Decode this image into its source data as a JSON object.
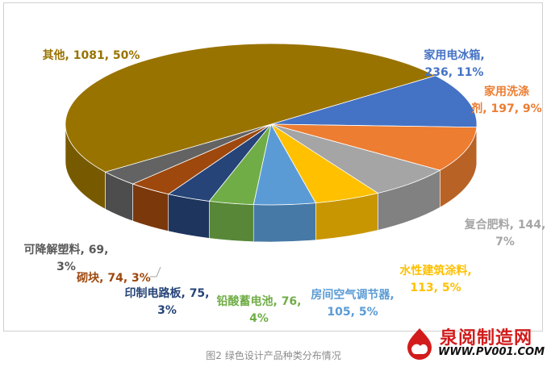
{
  "chart_data": {
    "type": "pie",
    "variant": "3d",
    "title": "",
    "legend": "none",
    "slices": [
      {
        "name": "家用电冰箱",
        "value": 236,
        "percent": "11%",
        "color": "#4472c4",
        "label_color": "#4472c4",
        "label_lines": [
          "家用电冰箱,",
          "236, 11%"
        ]
      },
      {
        "name": "家用洗涤剂",
        "value": 197,
        "percent": "9%",
        "color": "#ed7d31",
        "label_color": "#ed7d31",
        "label_lines": [
          "家用洗涤",
          "剂, 197, 9%"
        ]
      },
      {
        "name": "复合肥料",
        "value": 144,
        "percent": "7%",
        "color": "#a5a5a5",
        "label_color": "#a5a5a5",
        "label_lines": [
          "复合肥料, 144,",
          "7%"
        ]
      },
      {
        "name": "水性建筑涂料",
        "value": 113,
        "percent": "5%",
        "color": "#ffc000",
        "label_color": "#ffc000",
        "label_lines": [
          "水性建筑涂料,",
          "113, 5%"
        ]
      },
      {
        "name": "房间空气调节器",
        "value": 105,
        "percent": "5%",
        "color": "#5b9bd5",
        "label_color": "#5b9bd5",
        "label_lines": [
          "房间空气调节器,",
          "105, 5%"
        ]
      },
      {
        "name": "铅酸蓄电池",
        "value": 76,
        "percent": "4%",
        "color": "#70ad47",
        "label_color": "#70ad47",
        "label_lines": [
          "铅酸蓄电池, 76,",
          "4%"
        ]
      },
      {
        "name": "印制电路板",
        "value": 75,
        "percent": "3%",
        "color": "#264478",
        "label_color": "#264478",
        "label_lines": [
          "印制电路板, 75,",
          "3%"
        ]
      },
      {
        "name": "砌块",
        "value": 74,
        "percent": "3%",
        "color": "#9e480e",
        "label_color": "#9e480e",
        "label_lines": [
          "砌块, 74, 3%"
        ]
      },
      {
        "name": "可降解塑料",
        "value": 69,
        "percent": "3%",
        "color": "#636363",
        "label_color": "#595959",
        "label_lines": [
          "可降解塑料, 69,",
          "3%"
        ]
      },
      {
        "name": "其他",
        "value": 1081,
        "percent": "50%",
        "color": "#997300",
        "label_color": "#997300",
        "label_lines": [
          "其他, 1081, 50%"
        ]
      }
    ]
  },
  "caption": "图2 绿色设计产品种类分布情况",
  "watermark": {
    "text": "泉阅制造网",
    "url": "WWW.PV001.COM",
    "color": "#d21c1c",
    "icon": "cloud-drop-logo-icon"
  }
}
